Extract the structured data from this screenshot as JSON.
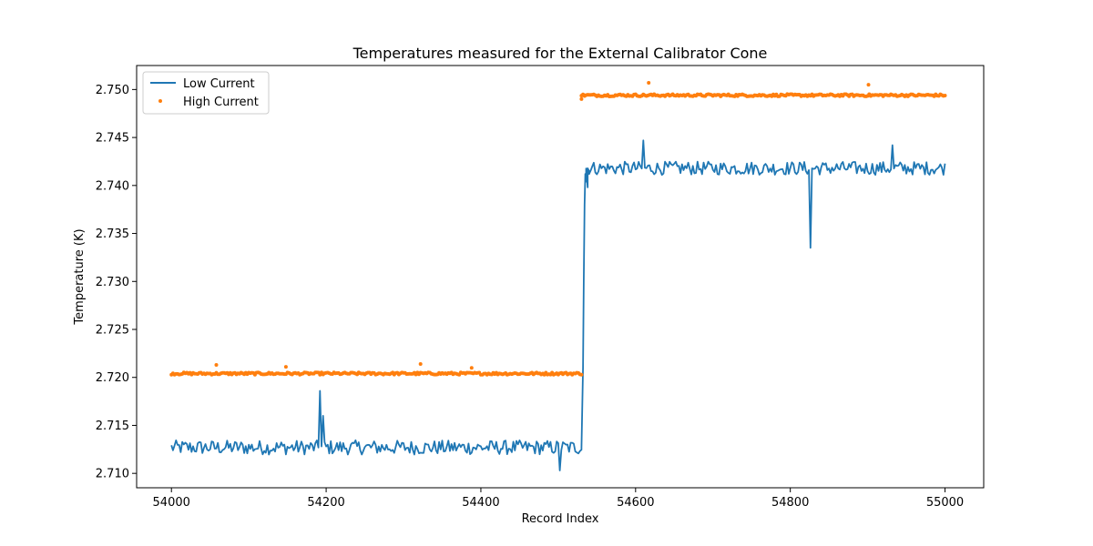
{
  "chart_data": {
    "type": "line",
    "title": "Temperatures measured for the External Calibrator Cone",
    "xlabel": "Record Index",
    "ylabel": "Temperature (K)",
    "xlim": [
      53955,
      55050
    ],
    "ylim": [
      2.7085,
      2.7525
    ],
    "xticks": [
      54000,
      54200,
      54400,
      54600,
      54800,
      55000
    ],
    "yticks": [
      2.71,
      2.715,
      2.72,
      2.725,
      2.73,
      2.735,
      2.74,
      2.745,
      2.75
    ],
    "legend_position": "top-left",
    "series": [
      {
        "name": "Low Current",
        "style": "line",
        "color": "#1f77b4",
        "segments": [
          {
            "x_start": 54000,
            "x_end": 54530,
            "level": 2.7127,
            "noise": 0.00075
          },
          {
            "x_start": 54536,
            "x_end": 55000,
            "level": 2.7418,
            "noise": 0.0007
          }
        ],
        "transition": [
          [
            54530,
            2.7126
          ],
          [
            54532,
            2.721
          ],
          [
            54533,
            2.73
          ],
          [
            54534,
            2.738
          ],
          [
            54535,
            2.7412
          ],
          [
            54536,
            2.7404
          ],
          [
            54538,
            2.7398
          ],
          [
            54540,
            2.7415
          ]
        ],
        "spikes": [
          [
            54192,
            2.7186
          ],
          [
            54196,
            2.716
          ],
          [
            54502,
            2.7103
          ],
          [
            54610,
            2.7447
          ],
          [
            54826,
            2.7335
          ],
          [
            54932,
            2.7442
          ]
        ]
      },
      {
        "name": "High Current",
        "style": "scatter",
        "color": "#ff7f0e",
        "segments": [
          {
            "x_start": 54000,
            "x_end": 54530,
            "level": 2.7204,
            "noise": 0.00012
          },
          {
            "x_start": 54530,
            "x_end": 55000,
            "level": 2.7494,
            "noise": 0.00012
          }
        ],
        "outliers": [
          [
            54058,
            2.7213
          ],
          [
            54148,
            2.7211
          ],
          [
            54322,
            2.7214
          ],
          [
            54388,
            2.721
          ],
          [
            54617,
            2.7507
          ],
          [
            54901,
            2.7505
          ],
          [
            54530,
            2.749
          ]
        ]
      }
    ]
  }
}
